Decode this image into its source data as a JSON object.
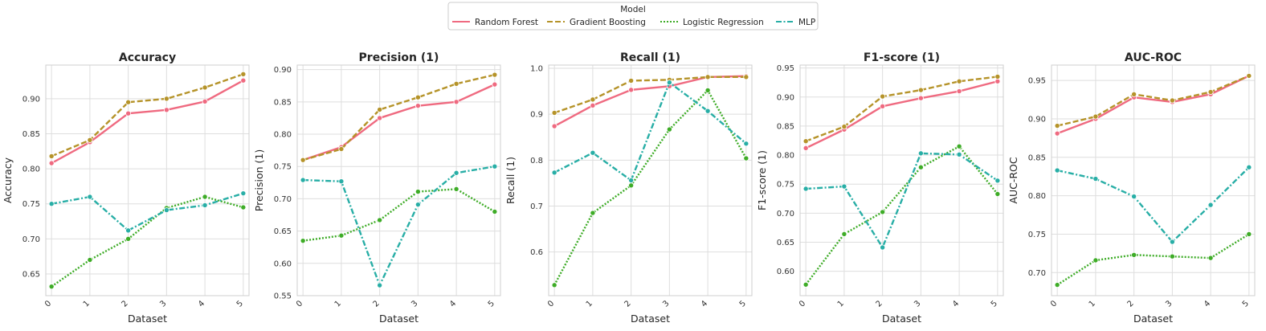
{
  "legend": {
    "title": "Model",
    "entries": [
      "Random Forest",
      "Gradient Boosting",
      "Logistic Regression",
      "MLP"
    ]
  },
  "colors": {
    "Random Forest": "#ef6a80",
    "Gradient Boosting": "#b59329",
    "Logistic Regression": "#3eac27",
    "MLP": "#28aea6"
  },
  "chart_data": [
    {
      "type": "line",
      "title": "Accuracy",
      "xlabel": "Dataset",
      "ylabel": "Accuracy",
      "x": [
        0,
        1,
        2,
        3,
        4,
        5
      ],
      "ylim": [
        0.619,
        0.948
      ],
      "yticks": [
        0.65,
        0.7,
        0.75,
        0.8,
        0.85,
        0.9
      ],
      "grid": true,
      "legend_position": "top-center",
      "series": [
        {
          "name": "Random Forest",
          "values": [
            0.808,
            0.838,
            0.879,
            0.884,
            0.896,
            0.926
          ]
        },
        {
          "name": "Gradient Boosting",
          "values": [
            0.818,
            0.841,
            0.895,
            0.9,
            0.916,
            0.935
          ]
        },
        {
          "name": "Logistic Regression",
          "values": [
            0.632,
            0.67,
            0.7,
            0.744,
            0.76,
            0.745
          ]
        },
        {
          "name": "MLP",
          "values": [
            0.75,
            0.76,
            0.712,
            0.741,
            0.748,
            0.765
          ]
        }
      ]
    },
    {
      "type": "line",
      "title": "Precision (1)",
      "xlabel": "Dataset",
      "ylabel": "Precision (1)",
      "x": [
        0,
        1,
        2,
        3,
        4,
        5
      ],
      "ylim": [
        0.55,
        0.907
      ],
      "yticks": [
        0.55,
        0.6,
        0.65,
        0.7,
        0.75,
        0.8,
        0.85,
        0.9
      ],
      "grid": true,
      "series": [
        {
          "name": "Random Forest",
          "values": [
            0.76,
            0.78,
            0.825,
            0.844,
            0.85,
            0.877
          ]
        },
        {
          "name": "Gradient Boosting",
          "values": [
            0.76,
            0.777,
            0.838,
            0.857,
            0.878,
            0.892
          ]
        },
        {
          "name": "Logistic Regression",
          "values": [
            0.635,
            0.643,
            0.667,
            0.711,
            0.715,
            0.68
          ]
        },
        {
          "name": "MLP",
          "values": [
            0.729,
            0.727,
            0.566,
            0.691,
            0.74,
            0.75
          ]
        }
      ]
    },
    {
      "type": "line",
      "title": "Recall (1)",
      "xlabel": "Dataset",
      "ylabel": "Recall (1)",
      "x": [
        0,
        1,
        2,
        3,
        4,
        5
      ],
      "ylim": [
        0.505,
        1.007
      ],
      "yticks": [
        0.6,
        0.7,
        0.8,
        0.9,
        1.0
      ],
      "grid": true,
      "series": [
        {
          "name": "Random Forest",
          "values": [
            0.874,
            0.919,
            0.953,
            0.961,
            0.981,
            0.983
          ]
        },
        {
          "name": "Gradient Boosting",
          "values": [
            0.903,
            0.932,
            0.973,
            0.975,
            0.981,
            0.981
          ]
        },
        {
          "name": "Logistic Regression",
          "values": [
            0.528,
            0.685,
            0.745,
            0.867,
            0.952,
            0.804
          ]
        },
        {
          "name": "MLP",
          "values": [
            0.773,
            0.816,
            0.756,
            0.969,
            0.907,
            0.836
          ]
        }
      ]
    },
    {
      "type": "line",
      "title": "F1-score (1)",
      "xlabel": "Dataset",
      "ylabel": "F1-score (1)",
      "x": [
        0,
        1,
        2,
        3,
        4,
        5
      ],
      "ylim": [
        0.558,
        0.955
      ],
      "yticks": [
        0.6,
        0.65,
        0.7,
        0.75,
        0.8,
        0.85,
        0.9,
        0.95
      ],
      "grid": true,
      "series": [
        {
          "name": "Random Forest",
          "values": [
            0.812,
            0.844,
            0.884,
            0.898,
            0.91,
            0.927
          ]
        },
        {
          "name": "Gradient Boosting",
          "values": [
            0.824,
            0.849,
            0.901,
            0.912,
            0.927,
            0.935
          ]
        },
        {
          "name": "Logistic Regression",
          "values": [
            0.577,
            0.664,
            0.702,
            0.779,
            0.815,
            0.733
          ]
        },
        {
          "name": "MLP",
          "values": [
            0.742,
            0.746,
            0.641,
            0.803,
            0.801,
            0.756
          ]
        }
      ]
    },
    {
      "type": "line",
      "title": "AUC-ROC",
      "xlabel": "Dataset",
      "ylabel": "AUC-ROC",
      "x": [
        0,
        1,
        2,
        3,
        4,
        5
      ],
      "ylim": [
        0.67,
        0.97
      ],
      "yticks": [
        0.7,
        0.75,
        0.8,
        0.85,
        0.9,
        0.95
      ],
      "grid": true,
      "series": [
        {
          "name": "Random Forest",
          "values": [
            0.881,
            0.9,
            0.928,
            0.922,
            0.932,
            0.956
          ]
        },
        {
          "name": "Gradient Boosting",
          "values": [
            0.891,
            0.903,
            0.932,
            0.924,
            0.935,
            0.956
          ]
        },
        {
          "name": "Logistic Regression",
          "values": [
            0.684,
            0.716,
            0.723,
            0.721,
            0.719,
            0.75
          ]
        },
        {
          "name": "MLP",
          "values": [
            0.833,
            0.822,
            0.799,
            0.74,
            0.788,
            0.837
          ]
        }
      ]
    }
  ]
}
